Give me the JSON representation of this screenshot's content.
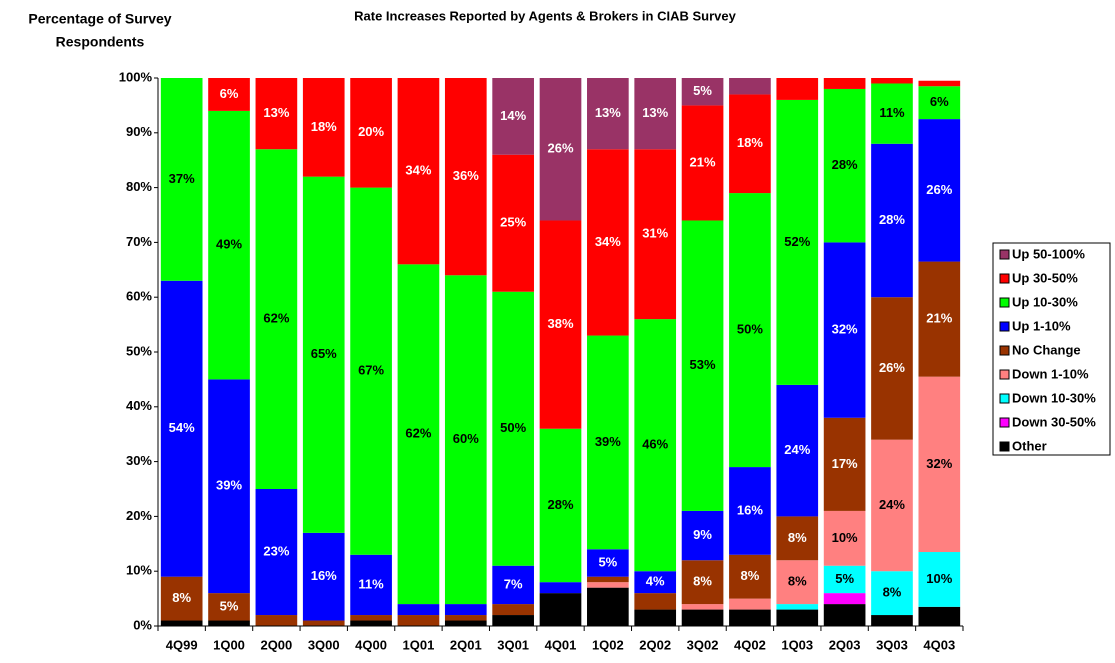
{
  "chart_data": {
    "type": "stacked_bar",
    "title": "Rate Increases Reported by Agents & Brokers in CIAB Survey",
    "y_label": [
      "Percentage of Survey",
      "Respondents"
    ],
    "categories": [
      "4Q99",
      "1Q00",
      "2Q00",
      "3Q00",
      "4Q00",
      "1Q01",
      "2Q01",
      "3Q01",
      "4Q01",
      "1Q02",
      "2Q02",
      "3Q02",
      "4Q02",
      "1Q03",
      "2Q03",
      "3Q03",
      "4Q03"
    ],
    "ylim": [
      0,
      100
    ],
    "yticks": [
      {
        "value": 0,
        "label": "0%"
      },
      {
        "value": 10,
        "label": "10%"
      },
      {
        "value": 20,
        "label": "20%"
      },
      {
        "value": 30,
        "label": "30%"
      },
      {
        "value": 40,
        "label": "40%"
      },
      {
        "value": 50,
        "label": "50%"
      },
      {
        "value": 60,
        "label": "60%"
      },
      {
        "value": 70,
        "label": "70%"
      },
      {
        "value": 80,
        "label": "80%"
      },
      {
        "value": 90,
        "label": "90%"
      },
      {
        "value": 100,
        "label": "100%"
      }
    ],
    "grid": false,
    "legend": "right",
    "series": [
      {
        "name": "Other",
        "color": "#000000",
        "values": [
          1,
          1,
          0,
          0,
          1,
          0,
          1,
          2,
          6,
          7,
          3,
          3,
          3,
          3,
          4,
          2,
          3.5
        ],
        "value_labels": [
          null,
          null,
          null,
          null,
          null,
          null,
          null,
          null,
          null,
          null,
          null,
          null,
          null,
          null,
          null,
          null,
          null
        ]
      },
      {
        "name": "Down 30-50%",
        "color": "#ff00ff",
        "values": [
          0,
          0,
          0,
          0,
          0,
          0,
          0,
          0,
          0,
          0,
          0,
          0,
          0,
          0,
          2,
          0,
          0
        ],
        "value_labels": [
          null,
          null,
          null,
          null,
          null,
          null,
          null,
          null,
          null,
          null,
          null,
          null,
          null,
          null,
          null,
          null,
          null
        ]
      },
      {
        "name": "Down 10-30%",
        "color": "#00ffff",
        "values": [
          0,
          0,
          0,
          0,
          0,
          0,
          0,
          0,
          0,
          0,
          0,
          0,
          0,
          1,
          5,
          8,
          10
        ],
        "value_labels": [
          null,
          null,
          null,
          null,
          null,
          null,
          null,
          null,
          null,
          null,
          null,
          null,
          null,
          null,
          "5%",
          "8%",
          "10%"
        ]
      },
      {
        "name": "Down 1-10%",
        "color": "#ff8080",
        "values": [
          0,
          0,
          0,
          0,
          0,
          0,
          0,
          0,
          0,
          1,
          0,
          1,
          2,
          8,
          10,
          24,
          32
        ],
        "value_labels": [
          null,
          null,
          null,
          null,
          null,
          null,
          null,
          null,
          null,
          null,
          null,
          null,
          null,
          "8%",
          "10%",
          "24%",
          "32%"
        ]
      },
      {
        "name": "No Change",
        "color": "#993300",
        "values": [
          8,
          5,
          2,
          1,
          1,
          2,
          1,
          2,
          0,
          1,
          3,
          8,
          8,
          8,
          17,
          26,
          21
        ],
        "value_labels": [
          "8%",
          "5%",
          null,
          null,
          null,
          null,
          null,
          null,
          null,
          null,
          null,
          "8%",
          "8%",
          "8%",
          "17%",
          "26%",
          "21%"
        ]
      },
      {
        "name": "Up 1-10%",
        "color": "#0000ff",
        "values": [
          54,
          39,
          23,
          16,
          11,
          2,
          2,
          7,
          2,
          5,
          4,
          9,
          16,
          24,
          32,
          28,
          26
        ],
        "value_labels": [
          "54%",
          "39%",
          "23%",
          "16%",
          "11%",
          null,
          null,
          "7%",
          null,
          "5%",
          "4%",
          "9%",
          "16%",
          "24%",
          "32%",
          "28%",
          "26%"
        ]
      },
      {
        "name": "Up 10-30%",
        "color": "#00ff00",
        "values": [
          37,
          49,
          62,
          65,
          67,
          62,
          60,
          50,
          28,
          39,
          46,
          53,
          50,
          52,
          28,
          11,
          6
        ],
        "value_labels": [
          "37%",
          "49%",
          "62%",
          "65%",
          "67%",
          "62%",
          "60%",
          "50%",
          "28%",
          "39%",
          "46%",
          "53%",
          "50%",
          "52%",
          "28%",
          "11%",
          "6%"
        ]
      },
      {
        "name": "Up 30-50%",
        "color": "#ff0000",
        "values": [
          0,
          6,
          13,
          18,
          20,
          34,
          36,
          25,
          38,
          34,
          31,
          21,
          18,
          4,
          2,
          1,
          1
        ],
        "value_labels": [
          null,
          "6%",
          "13%",
          "18%",
          "20%",
          "34%",
          "36%",
          "25%",
          "38%",
          "34%",
          "31%",
          "21%",
          "18%",
          null,
          null,
          null,
          null
        ]
      },
      {
        "name": "Up 50-100%",
        "color": "#993366",
        "values": [
          0,
          0,
          0,
          0,
          0,
          0,
          0,
          14,
          26,
          13,
          13,
          5,
          3,
          0,
          0,
          0,
          0
        ],
        "value_labels": [
          null,
          null,
          null,
          null,
          null,
          null,
          null,
          "14%",
          "26%",
          "13%",
          "13%",
          "5%",
          null,
          null,
          null,
          null,
          null
        ]
      }
    ]
  }
}
